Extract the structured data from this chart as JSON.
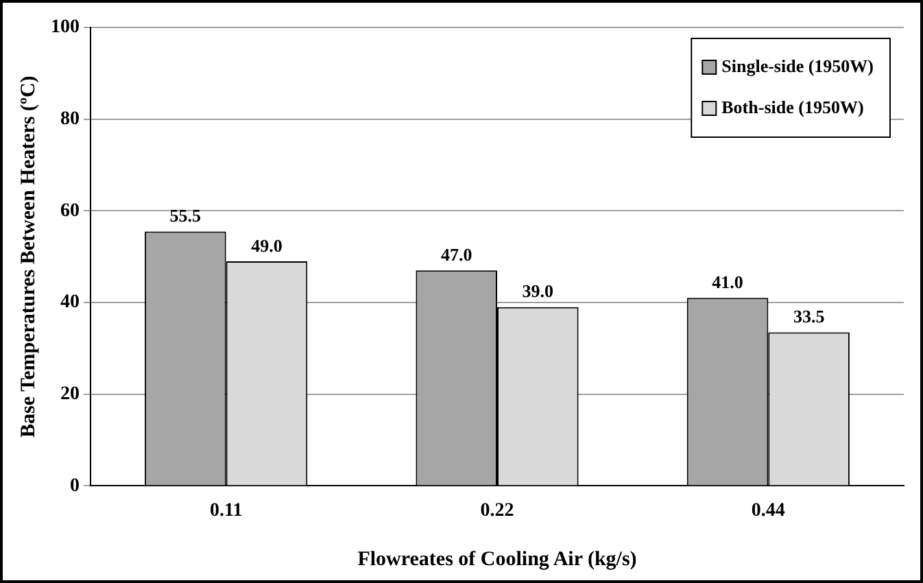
{
  "chart_data": {
    "type": "bar",
    "xlabel": "Flowreates of Cooling Air (kg/s)",
    "ylabel": "Base Temperatures Between Heaters (ºC)",
    "categories": [
      "0.11",
      "0.22",
      "0.44"
    ],
    "series": [
      {
        "name": "Single-side (1950W)",
        "color": "#a6a6a6",
        "values": [
          55.5,
          47.0,
          41.0
        ],
        "value_labels": [
          "55.5",
          "47.0",
          "41.0"
        ]
      },
      {
        "name": "Both-side (1950W)",
        "color": "#d9d9d9",
        "values": [
          49.0,
          39.0,
          33.5
        ],
        "value_labels": [
          "49.0",
          "39.0",
          "33.5"
        ]
      }
    ],
    "ylim": [
      0,
      100
    ],
    "yticks": [
      0,
      20,
      40,
      60,
      80,
      100
    ],
    "grid": "y",
    "legend": "top right"
  }
}
